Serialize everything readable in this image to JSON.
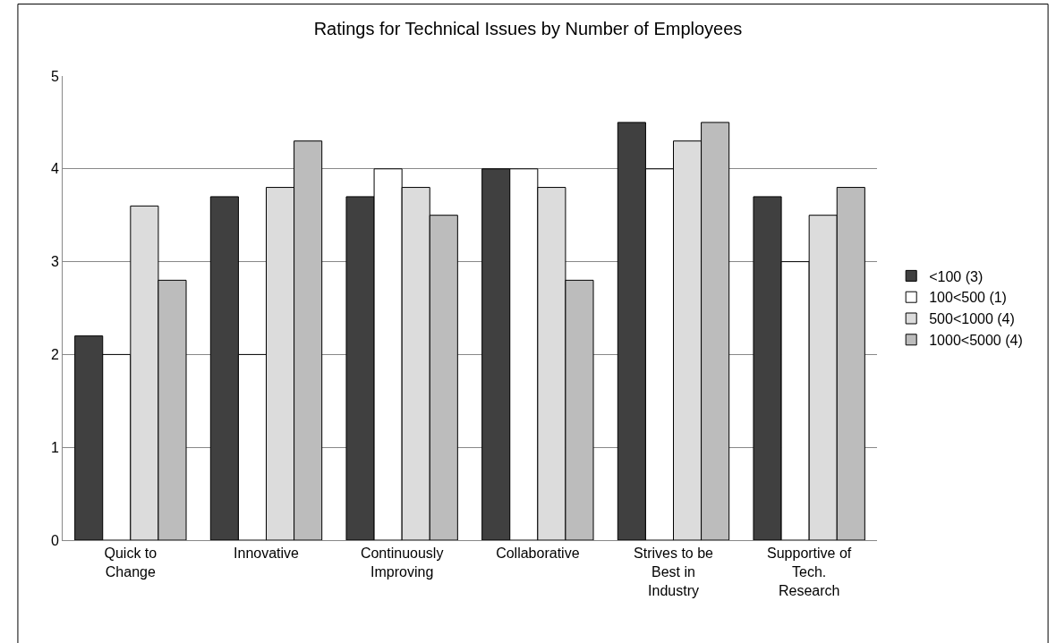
{
  "chart_data": {
    "type": "bar",
    "title": "Ratings for Technical Issues by Number of Employees",
    "categories": [
      "Quick to\nChange",
      "Innovative",
      "Continuously\nImproving",
      "Collaborative",
      "Strives to be\nBest in\nIndustry",
      "Supportive of\nTech.\nResearch"
    ],
    "series": [
      {
        "name": "<100 (3)",
        "color": "#404040",
        "values": [
          2.2,
          3.7,
          3.7,
          4.0,
          4.5,
          3.7
        ]
      },
      {
        "name": "100<500 (1)",
        "color": "#ffffff",
        "values": [
          2.0,
          2.0,
          4.0,
          4.0,
          4.0,
          3.0
        ]
      },
      {
        "name": "500<1000 (4)",
        "color": "#dcdcdc",
        "values": [
          3.6,
          3.8,
          3.8,
          3.8,
          4.3,
          3.5
        ]
      },
      {
        "name": "1000<5000 (4)",
        "color": "#bcbcbc",
        "values": [
          2.8,
          4.3,
          3.5,
          2.8,
          4.5,
          3.8
        ]
      }
    ],
    "ylim": [
      0,
      5
    ],
    "yticks": [
      0,
      1,
      2,
      3,
      4,
      5
    ],
    "grid": "y",
    "legend": "right"
  }
}
